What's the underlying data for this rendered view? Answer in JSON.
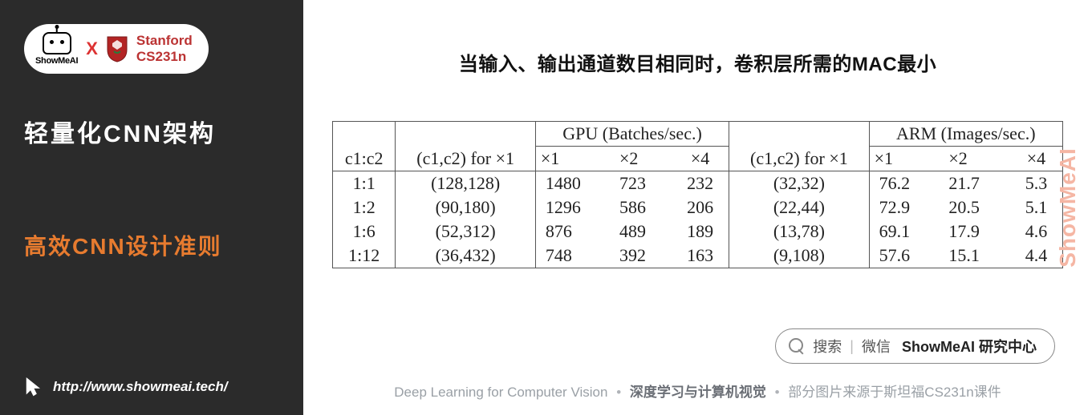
{
  "colors": {
    "sidebar_bg": "#2b2b2b",
    "accent_orange": "#e77b2f",
    "watermark_color": "#f5b6a4",
    "stanford_red": "#b33",
    "border_color": "#555555",
    "footer_gray": "#9aa0a6",
    "footer_mid": "#6b6f76"
  },
  "badge": {
    "logo_label": "ShowMeAI",
    "separator": "X",
    "stanford_line1": "Stanford",
    "stanford_line2": "CS231n"
  },
  "sidebar": {
    "title": "轻量化CNN架构",
    "subtitle": "高效CNN设计准则",
    "link_text": "http://www.showmeai.tech/"
  },
  "main": {
    "heading": "当输入、输出通道数目相同时，卷积层所需的MAC最小",
    "watermark": "ShowMeAI"
  },
  "table": {
    "type": "table",
    "header_row1": {
      "c0": "",
      "c1": "",
      "gpu_span": "GPU (Batches/sec.)",
      "c4": "",
      "arm_span": "ARM (Images/sec.)"
    },
    "header_row2": {
      "c0": "c1:c2",
      "c1": "(c1,c2) for ×1",
      "c2": "×1",
      "c3": "×2",
      "c4": "×4",
      "c5": "(c1,c2) for ×1",
      "c6": "×1",
      "c7": "×2",
      "c8": "×4"
    },
    "rows": [
      {
        "ratio": "1:1",
        "gpu_pair": "(128,128)",
        "gpu_x1": "1480",
        "gpu_x2": "723",
        "gpu_x4": "232",
        "arm_pair": "(32,32)",
        "arm_x1": "76.2",
        "arm_x2": "21.7",
        "arm_x4": "5.3"
      },
      {
        "ratio": "1:2",
        "gpu_pair": "(90,180)",
        "gpu_x1": "1296",
        "gpu_x2": "586",
        "gpu_x4": "206",
        "arm_pair": "(22,44)",
        "arm_x1": "72.9",
        "arm_x2": "20.5",
        "arm_x4": "5.1"
      },
      {
        "ratio": "1:6",
        "gpu_pair": "(52,312)",
        "gpu_x1": "876",
        "gpu_x2": "489",
        "gpu_x4": "189",
        "arm_pair": "(13,78)",
        "arm_x1": "69.1",
        "arm_x2": "17.9",
        "arm_x4": "4.6"
      },
      {
        "ratio": "1:12",
        "gpu_pair": "(36,432)",
        "gpu_x1": "748",
        "gpu_x2": "392",
        "gpu_x4": "163",
        "arm_pair": "(9,108)",
        "arm_x1": "57.6",
        "arm_x2": "15.1",
        "arm_x4": "4.4"
      }
    ]
  },
  "search": {
    "prefix": "搜索",
    "via": "微信",
    "bold": "ShowMeAI 研究中心"
  },
  "footer": {
    "left": "Deep Learning for Computer Vision",
    "mid": "深度学习与计算机视觉",
    "right": "部分图片来源于斯坦福CS231n课件"
  }
}
